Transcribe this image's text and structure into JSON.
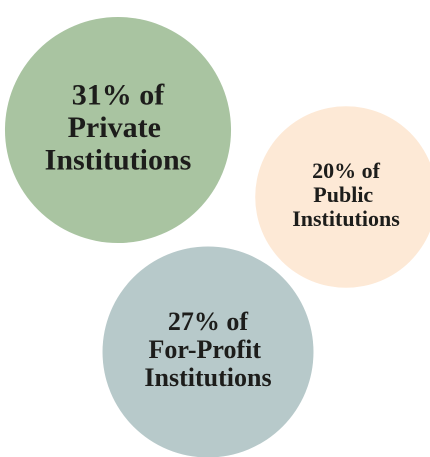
{
  "chart_data": {
    "type": "bubble",
    "categories": [
      "Private Institutions",
      "Public Institutions",
      "For-Profit Institutions"
    ],
    "values": [
      31,
      20,
      27
    ],
    "value_labels": [
      "31%",
      "20%",
      "27%"
    ],
    "connector": "of",
    "colors": [
      "#a9c4a1",
      "#fde9d6",
      "#b7c9ca"
    ]
  }
}
